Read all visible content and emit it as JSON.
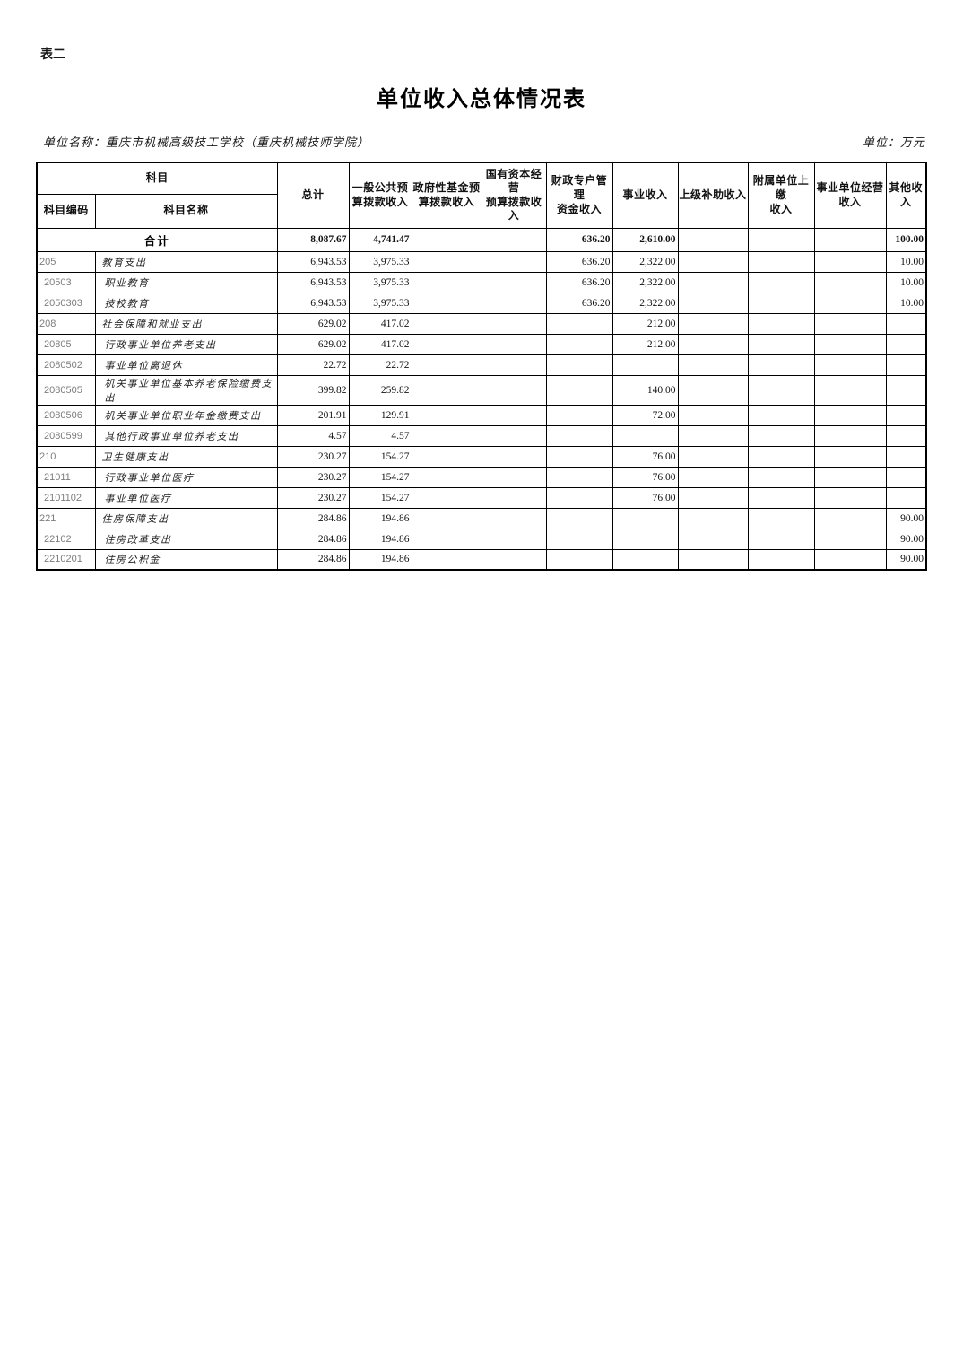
{
  "page": {
    "tag": "表二",
    "title": "单位收入总体情况表",
    "unit_name": "单位名称：重庆市机械高级技工学校（重庆机械技师学院）",
    "unit": "单位：万元"
  },
  "table": {
    "header": {
      "subject": "科目",
      "subject_code": "科目编码",
      "subject_name": "科目名称",
      "columns": [
        "总计",
        "一般公共预\n算拨款收入",
        "政府性基金预\n算拨款收入",
        "国有资本经营\n预算拨款收入",
        "财政专户管理\n资金收入",
        "事业收入",
        "上级补助收入",
        "附属单位上缴\n收入",
        "事业单位经营\n收入",
        "其他收\n入"
      ]
    },
    "total_row": {
      "label": "合计",
      "values": [
        "8,087.67",
        "4,741.47",
        "",
        "",
        "636.20",
        "2,610.00",
        "",
        "",
        "",
        "100.00"
      ]
    },
    "rows": [
      {
        "code": "205",
        "name": "教育支出",
        "values": [
          "6,943.53",
          "3,975.33",
          "",
          "",
          "636.20",
          "2,322.00",
          "",
          "",
          "",
          "10.00"
        ]
      },
      {
        "code": "20503",
        "name": "职业教育",
        "values": [
          "6,943.53",
          "3,975.33",
          "",
          "",
          "636.20",
          "2,322.00",
          "",
          "",
          "",
          "10.00"
        ]
      },
      {
        "code": "2050303",
        "name": "技校教育",
        "values": [
          "6,943.53",
          "3,975.33",
          "",
          "",
          "636.20",
          "2,322.00",
          "",
          "",
          "",
          "10.00"
        ]
      },
      {
        "code": "208",
        "name": "社会保障和就业支出",
        "values": [
          "629.02",
          "417.02",
          "",
          "",
          "",
          "212.00",
          "",
          "",
          "",
          ""
        ]
      },
      {
        "code": "20805",
        "name": "行政事业单位养老支出",
        "values": [
          "629.02",
          "417.02",
          "",
          "",
          "",
          "212.00",
          "",
          "",
          "",
          ""
        ]
      },
      {
        "code": "2080502",
        "name": "事业单位离退休",
        "values": [
          "22.72",
          "22.72",
          "",
          "",
          "",
          "",
          "",
          "",
          "",
          ""
        ]
      },
      {
        "code": "2080505",
        "name": "机关事业单位基本养老保险缴费支出",
        "values": [
          "399.82",
          "259.82",
          "",
          "",
          "",
          "140.00",
          "",
          "",
          "",
          ""
        ]
      },
      {
        "code": "2080506",
        "name": "机关事业单位职业年金缴费支出",
        "values": [
          "201.91",
          "129.91",
          "",
          "",
          "",
          "72.00",
          "",
          "",
          "",
          ""
        ]
      },
      {
        "code": "2080599",
        "name": "其他行政事业单位养老支出",
        "values": [
          "4.57",
          "4.57",
          "",
          "",
          "",
          "",
          "",
          "",
          "",
          ""
        ]
      },
      {
        "code": "210",
        "name": "卫生健康支出",
        "values": [
          "230.27",
          "154.27",
          "",
          "",
          "",
          "76.00",
          "",
          "",
          "",
          ""
        ]
      },
      {
        "code": "21011",
        "name": "行政事业单位医疗",
        "values": [
          "230.27",
          "154.27",
          "",
          "",
          "",
          "76.00",
          "",
          "",
          "",
          ""
        ]
      },
      {
        "code": "2101102",
        "name": "事业单位医疗",
        "values": [
          "230.27",
          "154.27",
          "",
          "",
          "",
          "76.00",
          "",
          "",
          "",
          ""
        ]
      },
      {
        "code": "221",
        "name": "住房保障支出",
        "values": [
          "284.86",
          "194.86",
          "",
          "",
          "",
          "",
          "",
          "",
          "",
          "90.00"
        ]
      },
      {
        "code": "22102",
        "name": "住房改革支出",
        "values": [
          "284.86",
          "194.86",
          "",
          "",
          "",
          "",
          "",
          "",
          "",
          "90.00"
        ]
      },
      {
        "code": "2210201",
        "name": "住房公积金",
        "values": [
          "284.86",
          "194.86",
          "",
          "",
          "",
          "",
          "",
          "",
          "",
          "90.00"
        ]
      }
    ]
  }
}
